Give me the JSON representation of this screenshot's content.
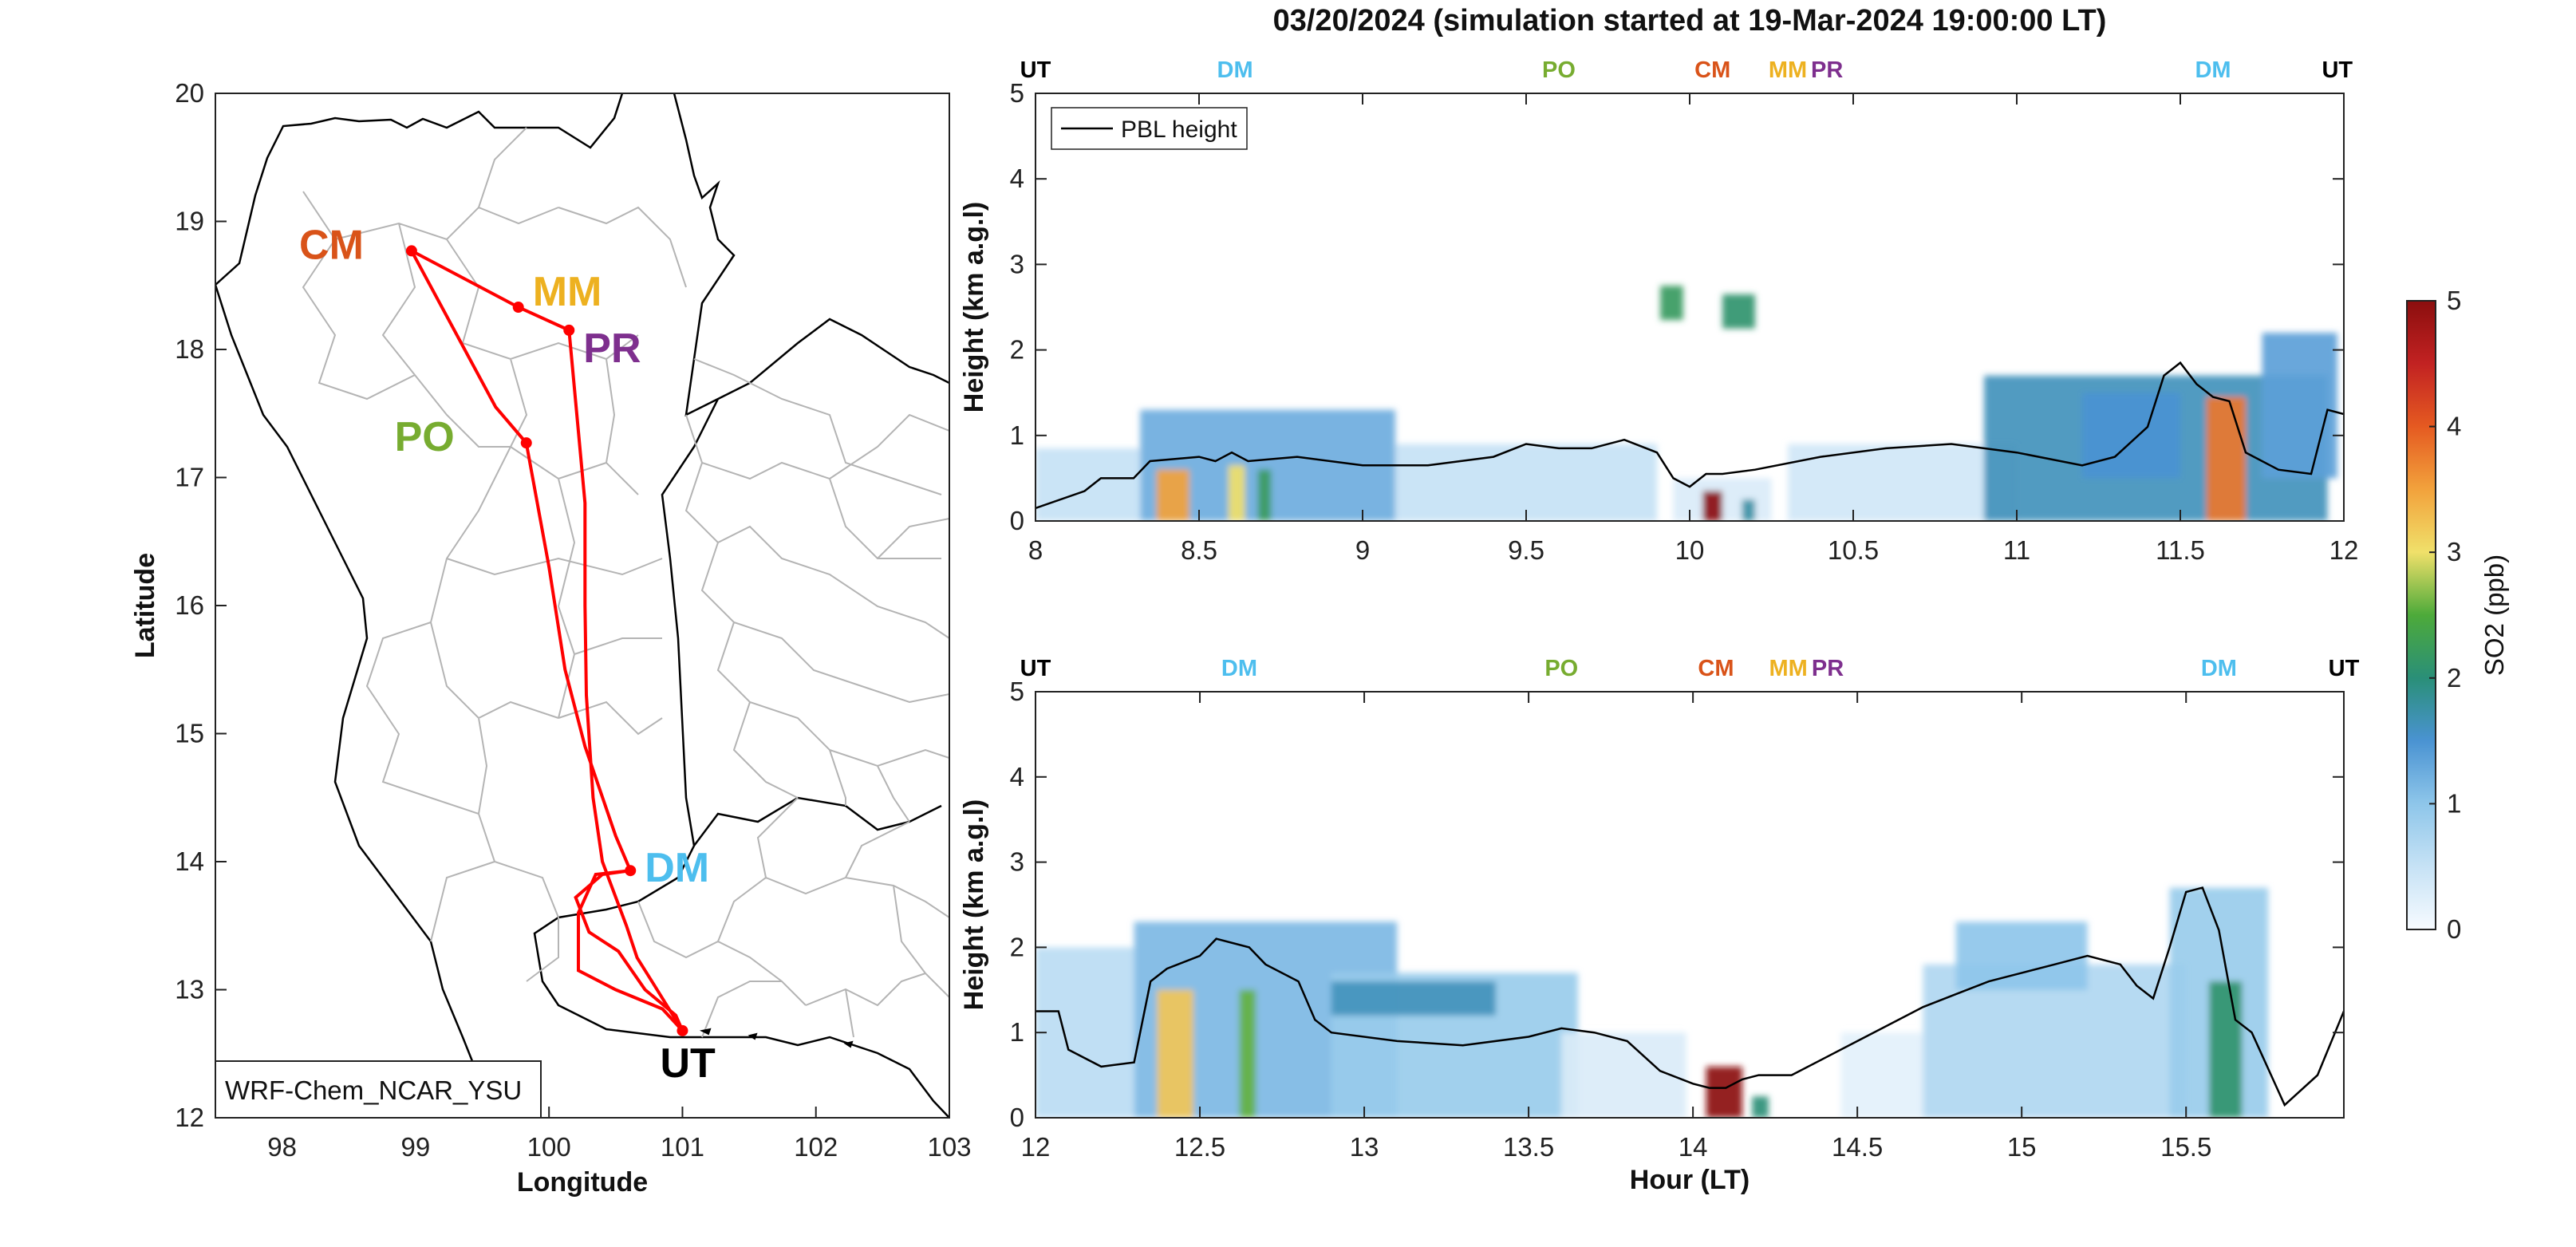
{
  "figure_title": "03/20/2024 (simulation started at 19-Mar-2024 19:00:00 LT)",
  "colors": {
    "CM": "#d95319",
    "MM": "#edb120",
    "PR": "#7e2f8e",
    "PO": "#77ac30",
    "DM": "#4dbeee",
    "UT": "#000000",
    "track": "#ff0000",
    "pbl": "#000000",
    "boundaries": "#b4b4b4",
    "coast": "#000000"
  },
  "map": {
    "xlabel": "Longitude",
    "ylabel": "Latitude",
    "model_label": "WRF-Chem_NCAR_YSU",
    "xticks": [
      "98",
      "99",
      "100",
      "101",
      "102",
      "103"
    ],
    "yticks": [
      "12",
      "13",
      "14",
      "15",
      "16",
      "17",
      "18",
      "19",
      "20"
    ],
    "stops": [
      {
        "id": "CM",
        "label": "CM",
        "lon": 98.97,
        "lat": 18.77
      },
      {
        "id": "MM",
        "label": "MM",
        "lon": 99.77,
        "lat": 18.33
      },
      {
        "id": "PR",
        "label": "PR",
        "lon": 100.15,
        "lat": 18.15
      },
      {
        "id": "PO",
        "label": "PO",
        "lon": 99.83,
        "lat": 17.27
      },
      {
        "id": "DM",
        "label": "DM",
        "lon": 100.61,
        "lat": 13.93
      },
      {
        "id": "UT",
        "label": "UT",
        "lon": 101.0,
        "lat": 12.68
      }
    ]
  },
  "curtain_plots": [
    {
      "ylabel": "Height (km a.g.l)",
      "xlabel": "",
      "xticks": [
        "8",
        "8.5",
        "9",
        "9.5",
        "10",
        "10.5",
        "11",
        "11.5",
        "12"
      ],
      "yticks": [
        "0",
        "1",
        "2",
        "3",
        "4",
        "5"
      ],
      "legend": "PBL height",
      "top_labels": [
        {
          "text": "UT",
          "color": "#000000",
          "hour": 8.0
        },
        {
          "text": "DM",
          "color": "#4dbeee",
          "hour": 8.61
        },
        {
          "text": "PO",
          "color": "#77ac30",
          "hour": 9.6
        },
        {
          "text": "CM",
          "color": "#d95319",
          "hour": 10.07
        },
        {
          "text": "MM",
          "color": "#edb120",
          "hour": 10.3
        },
        {
          "text": "PR",
          "color": "#7e2f8e",
          "hour": 10.42
        },
        {
          "text": "DM",
          "color": "#4dbeee",
          "hour": 11.6
        },
        {
          "text": "UT",
          "color": "#000000",
          "hour": 11.98
        }
      ]
    },
    {
      "ylabel": "Height (km a.g.l)",
      "xlabel": "Hour (LT)",
      "xticks": [
        "12",
        "12.5",
        "13",
        "13.5",
        "14",
        "14.5",
        "15",
        "15.5"
      ],
      "yticks": [
        "0",
        "1",
        "2",
        "3",
        "4",
        "5"
      ],
      "top_labels": [
        {
          "text": "UT",
          "color": "#000000",
          "hour": 12.0
        },
        {
          "text": "DM",
          "color": "#4dbeee",
          "hour": 12.62
        },
        {
          "text": "PO",
          "color": "#77ac30",
          "hour": 13.6
        },
        {
          "text": "CM",
          "color": "#d95319",
          "hour": 14.07
        },
        {
          "text": "MM",
          "color": "#edb120",
          "hour": 14.29
        },
        {
          "text": "PR",
          "color": "#7e2f8e",
          "hour": 14.41
        },
        {
          "text": "DM",
          "color": "#4dbeee",
          "hour": 15.6
        },
        {
          "text": "UT",
          "color": "#000000",
          "hour": 15.98
        }
      ]
    }
  ],
  "colorbar": {
    "label": "SO2 (ppb)",
    "ticks": [
      "0",
      "1",
      "2",
      "3",
      "4",
      "5"
    ]
  },
  "chart_data": [
    {
      "type": "line",
      "title": "",
      "xlabel": "Longitude",
      "ylabel": "Latitude",
      "xlim": [
        97.5,
        103
      ],
      "ylim": [
        12,
        20
      ],
      "series": [
        {
          "x": [
            98.97,
            99.77,
            100.15,
            100.27,
            100.27,
            100.28,
            100.33,
            100.4,
            100.49,
            100.58,
            100.66,
            100.78,
            101.0
          ],
          "y": [
            18.77,
            18.33,
            18.15,
            16.8,
            16.0,
            15.3,
            14.5,
            14.0,
            13.75,
            13.5,
            13.25,
            13.05,
            12.68
          ]
        },
        {
          "x": [
            100.61,
            100.4,
            100.2,
            100.3,
            100.52,
            100.72,
            100.95,
            101.0
          ],
          "y": [
            13.93,
            13.9,
            13.72,
            13.45,
            13.3,
            13.0,
            12.8,
            12.68
          ]
        },
        {
          "x": [
            98.97,
            99.6,
            99.83,
            100.0,
            100.12,
            100.27,
            100.5,
            100.61
          ],
          "y": [
            18.77,
            17.55,
            17.27,
            16.3,
            15.5,
            14.9,
            14.2,
            13.93
          ]
        },
        {
          "x": [
            101.0,
            100.85,
            100.5,
            100.22,
            100.22,
            100.35,
            100.61
          ],
          "y": [
            12.68,
            12.85,
            13.0,
            13.15,
            13.6,
            13.9,
            13.93
          ]
        }
      ]
    },
    {
      "type": "heatmap",
      "title": "",
      "xlabel": "",
      "ylabel": "Height (km a.g.l)",
      "xlim": [
        8,
        12
      ],
      "ylim": [
        0,
        5
      ],
      "colorbar_range": [
        0,
        5
      ],
      "so2_ppb": [
        {
          "x0": 8.0,
          "x1": 8.32,
          "y0": 0.0,
          "y1": 0.85,
          "v": 0.5
        },
        {
          "x0": 8.32,
          "x1": 9.1,
          "y0": 0.0,
          "y1": 1.3,
          "v": 1.2
        },
        {
          "x0": 9.1,
          "x1": 9.9,
          "y0": 0.0,
          "y1": 0.9,
          "v": 0.5
        },
        {
          "x0": 9.95,
          "x1": 10.25,
          "y0": 0.0,
          "y1": 0.5,
          "v": 0.3
        },
        {
          "x0": 10.3,
          "x1": 11.0,
          "y0": 0.0,
          "y1": 0.9,
          "v": 0.4
        },
        {
          "x0": 10.9,
          "x1": 11.95,
          "y0": 0.0,
          "y1": 1.7,
          "v": 1.5
        },
        {
          "x0": 11.2,
          "x1": 11.5,
          "y0": 0.5,
          "y1": 1.5,
          "v": 1.4
        },
        {
          "x0": 11.75,
          "x1": 11.98,
          "y0": 0.5,
          "y1": 2.2,
          "v": 1.3
        },
        {
          "x0": 8.37,
          "x1": 8.47,
          "y0": 0.0,
          "y1": 0.6,
          "v": 3.5
        },
        {
          "x0": 8.59,
          "x1": 8.64,
          "y0": 0.0,
          "y1": 0.65,
          "v": 3.0
        },
        {
          "x0": 8.68,
          "x1": 8.72,
          "y0": 0.0,
          "y1": 0.6,
          "v": 2.0
        },
        {
          "x0": 9.91,
          "x1": 9.98,
          "y0": 2.35,
          "y1": 2.75,
          "v": 2.0
        },
        {
          "x0": 10.1,
          "x1": 10.2,
          "y0": 2.25,
          "y1": 2.65,
          "v": 1.9
        },
        {
          "x0": 10.04,
          "x1": 10.1,
          "y0": 0.0,
          "y1": 0.35,
          "v": 5.0
        },
        {
          "x0": 10.16,
          "x1": 10.2,
          "y0": 0.0,
          "y1": 0.25,
          "v": 1.6
        },
        {
          "x0": 11.58,
          "x1": 11.7,
          "y0": 0.0,
          "y1": 1.45,
          "v": 3.8
        }
      ],
      "pbl_height_km": {
        "x": [
          8.0,
          8.15,
          8.2,
          8.3,
          8.35,
          8.5,
          8.55,
          8.6,
          8.65,
          8.8,
          9.0,
          9.2,
          9.4,
          9.5,
          9.6,
          9.7,
          9.8,
          9.9,
          9.95,
          10.0,
          10.05,
          10.1,
          10.2,
          10.4,
          10.6,
          10.8,
          11.0,
          11.2,
          11.3,
          11.4,
          11.45,
          11.5,
          11.55,
          11.6,
          11.65,
          11.7,
          11.8,
          11.9,
          11.95,
          12.0
        ],
        "y": [
          0.15,
          0.35,
          0.5,
          0.5,
          0.7,
          0.75,
          0.7,
          0.8,
          0.7,
          0.75,
          0.65,
          0.65,
          0.75,
          0.9,
          0.85,
          0.85,
          0.95,
          0.8,
          0.5,
          0.4,
          0.55,
          0.55,
          0.6,
          0.75,
          0.85,
          0.9,
          0.8,
          0.65,
          0.75,
          1.1,
          1.7,
          1.85,
          1.6,
          1.45,
          1.4,
          0.8,
          0.6,
          0.55,
          1.3,
          1.25
        ]
      }
    },
    {
      "type": "heatmap",
      "title": "",
      "xlabel": "Hour (LT)",
      "ylabel": "Height (km a.g.l)",
      "xlim": [
        12,
        15.98
      ],
      "ylim": [
        0,
        5
      ],
      "colorbar_range": [
        0,
        5
      ],
      "so2_ppb": [
        {
          "x0": 12.0,
          "x1": 12.3,
          "y0": 0.0,
          "y1": 2.0,
          "v": 0.6
        },
        {
          "x0": 12.3,
          "x1": 13.1,
          "y0": 0.0,
          "y1": 2.3,
          "v": 1.1
        },
        {
          "x0": 12.9,
          "x1": 13.65,
          "y0": 0.0,
          "y1": 1.7,
          "v": 0.9
        },
        {
          "x0": 12.9,
          "x1": 13.4,
          "y0": 1.2,
          "y1": 1.6,
          "v": 1.5
        },
        {
          "x0": 13.6,
          "x1": 13.98,
          "y0": 0.0,
          "y1": 1.0,
          "v": 0.3
        },
        {
          "x0": 14.45,
          "x1": 14.7,
          "y0": 0.0,
          "y1": 1.0,
          "v": 0.2
        },
        {
          "x0": 14.7,
          "x1": 15.5,
          "y0": 0.0,
          "y1": 1.8,
          "v": 0.7
        },
        {
          "x0": 14.8,
          "x1": 15.2,
          "y0": 1.5,
          "y1": 2.3,
          "v": 1.0
        },
        {
          "x0": 15.45,
          "x1": 15.75,
          "y0": 0.0,
          "y1": 2.7,
          "v": 0.9
        },
        {
          "x0": 12.37,
          "x1": 12.48,
          "y0": 0.0,
          "y1": 1.5,
          "v": 3.2
        },
        {
          "x0": 12.62,
          "x1": 12.67,
          "y0": 0.0,
          "y1": 1.5,
          "v": 2.4
        },
        {
          "x0": 14.04,
          "x1": 14.15,
          "y0": 0.0,
          "y1": 0.6,
          "v": 5.0
        },
        {
          "x0": 14.18,
          "x1": 14.23,
          "y0": 0.0,
          "y1": 0.25,
          "v": 1.8
        },
        {
          "x0": 15.57,
          "x1": 15.67,
          "y0": 0.0,
          "y1": 1.6,
          "v": 1.9
        }
      ],
      "pbl_height_km": {
        "x": [
          12.0,
          12.07,
          12.1,
          12.2,
          12.3,
          12.35,
          12.4,
          12.5,
          12.55,
          12.65,
          12.7,
          12.8,
          12.85,
          12.9,
          13.1,
          13.3,
          13.5,
          13.6,
          13.7,
          13.8,
          13.9,
          14.0,
          14.05,
          14.1,
          14.15,
          14.2,
          14.3,
          14.5,
          14.7,
          14.8,
          14.9,
          15.0,
          15.1,
          15.2,
          15.3,
          15.35,
          15.4,
          15.45,
          15.5,
          15.55,
          15.6,
          15.65,
          15.7,
          15.8,
          15.9,
          15.98
        ],
        "y": [
          1.25,
          1.25,
          0.8,
          0.6,
          0.65,
          1.6,
          1.75,
          1.9,
          2.1,
          2.0,
          1.8,
          1.6,
          1.15,
          1.0,
          0.9,
          0.85,
          0.95,
          1.05,
          1.0,
          0.9,
          0.55,
          0.4,
          0.35,
          0.35,
          0.45,
          0.5,
          0.5,
          0.9,
          1.3,
          1.45,
          1.6,
          1.7,
          1.8,
          1.9,
          1.8,
          1.55,
          1.4,
          2.0,
          2.65,
          2.7,
          2.2,
          1.15,
          1.0,
          0.15,
          0.5,
          1.25
        ]
      }
    }
  ]
}
